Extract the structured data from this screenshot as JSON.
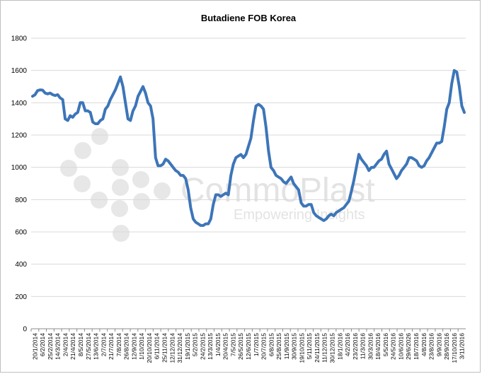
{
  "chart_data": {
    "type": "line",
    "title": "Butadiene FOB Korea",
    "xlabel": "",
    "ylabel": "",
    "ylim": [
      0,
      1800
    ],
    "yticks": [
      0,
      200,
      400,
      600,
      800,
      1000,
      1200,
      1400,
      1600,
      1800
    ],
    "grid": true,
    "legend": "none",
    "series_color": "#3d75b8",
    "x_tick_labels": [
      "20/1/2014",
      "6/2/2014",
      "25/2/2014",
      "14/3/2014",
      "2/4/2014",
      "21/4/2014",
      "8/5/2014",
      "27/5/2014",
      "13/6/2014",
      "2/7/2014",
      "21/7/2014",
      "7/8/2014",
      "26/8/2014",
      "12/9/2014",
      "1/10/2014",
      "20/10/2014",
      "6/11/2014",
      "25/11/2014",
      "12/12/2014",
      "31/12/2014",
      "19/1/2015",
      "5/2/2015",
      "24/2/2015",
      "13/3/2015",
      "1/4/2015",
      "20/4/2015",
      "7/5/2015",
      "26/5/2015",
      "12/6/2015",
      "1/7/2015",
      "20/7/2015",
      "6/8/2015",
      "25/8/2015",
      "11/9/2015",
      "30/9/2015",
      "19/10/2015",
      "5/11/2015",
      "24/11/2015",
      "11/12/2015",
      "30/12/2015",
      "18/1/2016",
      "4/2/2016",
      "23/2/2016",
      "11/3/2016",
      "30/3/2016",
      "18/4/2016",
      "5/5/2016",
      "24/5/2016",
      "10/6/2016",
      "29/6/2026",
      "18/7/2016",
      "4/8/2016",
      "23/8/2016",
      "9/9/2016",
      "28/9/2016",
      "17/10/2016",
      "3/11/2016"
    ],
    "values": [
      1440,
      1450,
      1475,
      1480,
      1478,
      1460,
      1455,
      1460,
      1450,
      1445,
      1450,
      1430,
      1420,
      1300,
      1290,
      1320,
      1310,
      1330,
      1340,
      1400,
      1400,
      1350,
      1350,
      1340,
      1280,
      1270,
      1270,
      1290,
      1300,
      1360,
      1380,
      1420,
      1450,
      1480,
      1520,
      1560,
      1500,
      1400,
      1300,
      1290,
      1350,
      1380,
      1440,
      1470,
      1500,
      1460,
      1400,
      1380,
      1300,
      1060,
      1010,
      1010,
      1020,
      1050,
      1040,
      1020,
      1000,
      980,
      970,
      950,
      950,
      930,
      860,
      750,
      680,
      660,
      650,
      640,
      640,
      650,
      650,
      680,
      770,
      830,
      830,
      820,
      830,
      840,
      830,
      950,
      1020,
      1060,
      1070,
      1080,
      1060,
      1080,
      1130,
      1180,
      1290,
      1380,
      1390,
      1380,
      1360,
      1250,
      1100,
      1000,
      980,
      950,
      940,
      930,
      910,
      900,
      920,
      940,
      900,
      880,
      860,
      780,
      760,
      760,
      770,
      770,
      720,
      700,
      690,
      680,
      670,
      680,
      700,
      710,
      700,
      720,
      730,
      740,
      750,
      770,
      790,
      850,
      920,
      1000,
      1080,
      1050,
      1030,
      1010,
      980,
      1000,
      1000,
      1020,
      1040,
      1050,
      1080,
      1100,
      1020,
      990,
      960,
      930,
      950,
      980,
      1000,
      1020,
      1060,
      1060,
      1050,
      1040,
      1010,
      1000,
      1010,
      1040,
      1060,
      1090,
      1120,
      1150,
      1150,
      1160,
      1250,
      1360,
      1400,
      1520,
      1600,
      1590,
      1500,
      1380,
      1340
    ]
  },
  "watermark": {
    "brand": "CommoPlast",
    "tagline": "Empowering Insights"
  }
}
